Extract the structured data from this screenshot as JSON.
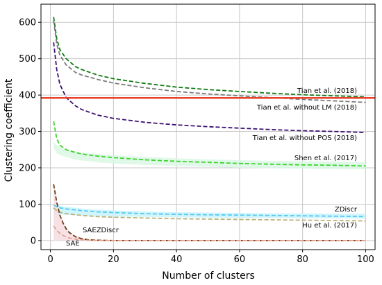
{
  "chart_data": {
    "type": "line",
    "title": "",
    "xlabel": "Number of clusters",
    "ylabel": "Clustering coefficient",
    "xlim": [
      -3,
      103
    ],
    "ylim": [
      -25,
      650
    ],
    "xticks": [
      0,
      20,
      40,
      60,
      80,
      100
    ],
    "yticks": [
      0,
      100,
      200,
      300,
      400,
      500,
      600
    ],
    "grid": true,
    "reference_line": {
      "y": 392,
      "color": "#e8432d"
    },
    "series": [
      {
        "name": "Tian et al. (2018)",
        "color": "#117a11",
        "style": "dashed",
        "x": [
          1,
          2,
          3,
          5,
          8,
          10,
          15,
          20,
          30,
          40,
          50,
          60,
          70,
          80,
          90,
          100
        ],
        "y": [
          615,
          555,
          525,
          500,
          478,
          470,
          455,
          445,
          432,
          422,
          415,
          410,
          405,
          401,
          398,
          395
        ],
        "band": null
      },
      {
        "name": "Tian et al. without LM (2018)",
        "color": "#7a7a7a",
        "style": "dashed",
        "x": [
          1,
          2,
          3,
          5,
          8,
          10,
          15,
          20,
          30,
          40,
          50,
          60,
          70,
          80,
          90,
          100
        ],
        "y": [
          605,
          540,
          510,
          483,
          462,
          455,
          443,
          433,
          420,
          410,
          403,
          398,
          393,
          388,
          384,
          380
        ],
        "band": null
      },
      {
        "name": "Tian et al. without POS (2018)",
        "color": "#3b0f70",
        "style": "dashed",
        "x": [
          1,
          2,
          3,
          5,
          8,
          10,
          15,
          20,
          30,
          40,
          50,
          60,
          70,
          80,
          90,
          100
        ],
        "y": [
          545,
          470,
          430,
          393,
          370,
          360,
          345,
          336,
          325,
          318,
          313,
          309,
          305,
          302,
          300,
          297
        ],
        "band": null
      },
      {
        "name": "Shen et al. (2017)",
        "color": "#3cd42a",
        "style": "dashed",
        "x": [
          1,
          2,
          3,
          5,
          8,
          10,
          15,
          20,
          30,
          40,
          50,
          60,
          70,
          80,
          90,
          100
        ],
        "y": [
          328,
          280,
          262,
          250,
          242,
          238,
          232,
          228,
          222,
          218,
          215,
          212,
          210,
          208,
          207,
          205
        ],
        "band": {
          "color": "#d9f7e4",
          "lower": [
            255,
            240,
            235,
            230,
            222,
            220,
            215,
            212,
            208,
            205,
            203,
            200,
            199,
            198,
            197,
            196
          ],
          "upper": [
            270,
            262,
            255,
            250,
            245,
            242,
            238,
            235,
            230,
            226,
            223,
            221,
            219,
            218,
            217,
            215
          ]
        }
      },
      {
        "name": "ZDiscr",
        "color": "#55c8f0",
        "style": "dashed",
        "x": [
          1,
          2,
          3,
          5,
          8,
          10,
          15,
          20,
          30,
          40,
          50,
          60,
          70,
          80,
          90,
          100
        ],
        "y": [
          98,
          93,
          90,
          87,
          84,
          82,
          79,
          77,
          74,
          72,
          71,
          70,
          69,
          68,
          67,
          66
        ],
        "band": {
          "color": "#c9f3fb",
          "lower": [
            70,
            72,
            72,
            71,
            70,
            69,
            67,
            66,
            65,
            64,
            63,
            62,
            62,
            61,
            61,
            60
          ],
          "upper": [
            100,
            98,
            96,
            93,
            90,
            88,
            85,
            83,
            80,
            78,
            77,
            76,
            75,
            75,
            74,
            74
          ]
        }
      },
      {
        "name": "Hu et al. (2017)",
        "color": "#b8b078",
        "style": "dashed",
        "x": [
          1,
          2,
          3,
          5,
          8,
          10,
          15,
          20,
          30,
          40,
          50,
          60,
          70,
          80,
          90,
          100
        ],
        "y": [
          90,
          82,
          78,
          74,
          71,
          69,
          66,
          64,
          62,
          60,
          59,
          58,
          57,
          56,
          55,
          54
        ],
        "band": null
      },
      {
        "name": "SAEZDiscr",
        "color": "#6b3a10",
        "style": "dashed",
        "x": [
          1,
          2,
          3,
          4,
          5,
          6,
          8,
          10,
          12,
          15,
          20,
          30,
          40,
          60,
          80,
          100
        ],
        "y": [
          155,
          105,
          70,
          48,
          32,
          22,
          10,
          5,
          2,
          1,
          0,
          0,
          0,
          0,
          0,
          0
        ],
        "band": {
          "color": "#f5dde2",
          "lower": [
            0,
            0,
            0,
            0,
            0,
            0,
            0,
            0,
            0,
            0,
            0,
            0,
            0,
            0,
            0,
            0
          ],
          "upper": [
            160,
            110,
            75,
            52,
            36,
            25,
            13,
            7,
            4,
            2,
            1,
            1,
            1,
            1,
            1,
            1
          ]
        }
      },
      {
        "name": "SAE",
        "color": "#e8a090",
        "style": "dashed",
        "x": [
          1,
          2,
          3,
          4,
          5,
          6,
          8,
          10,
          12,
          15,
          20,
          30,
          40,
          60,
          80,
          100
        ],
        "y": [
          40,
          28,
          20,
          14,
          10,
          7,
          4,
          2,
          1,
          0,
          0,
          0,
          0,
          0,
          0,
          0
        ],
        "band": null
      }
    ],
    "annotations": [
      {
        "text": "Tian et al. (2018)",
        "series": 0
      },
      {
        "text": "Tian et al. without LM (2018)",
        "series": 1
      },
      {
        "text": "Tian et al. without POS (2018)",
        "series": 2
      },
      {
        "text": "Shen et al. (2017)",
        "series": 3
      },
      {
        "text": "ZDiscr",
        "series": 4
      },
      {
        "text": "Hu et al. (2017)",
        "series": 5
      },
      {
        "text": "SAEZDiscr",
        "series": 6
      },
      {
        "text": "SAE",
        "series": 7
      }
    ]
  }
}
